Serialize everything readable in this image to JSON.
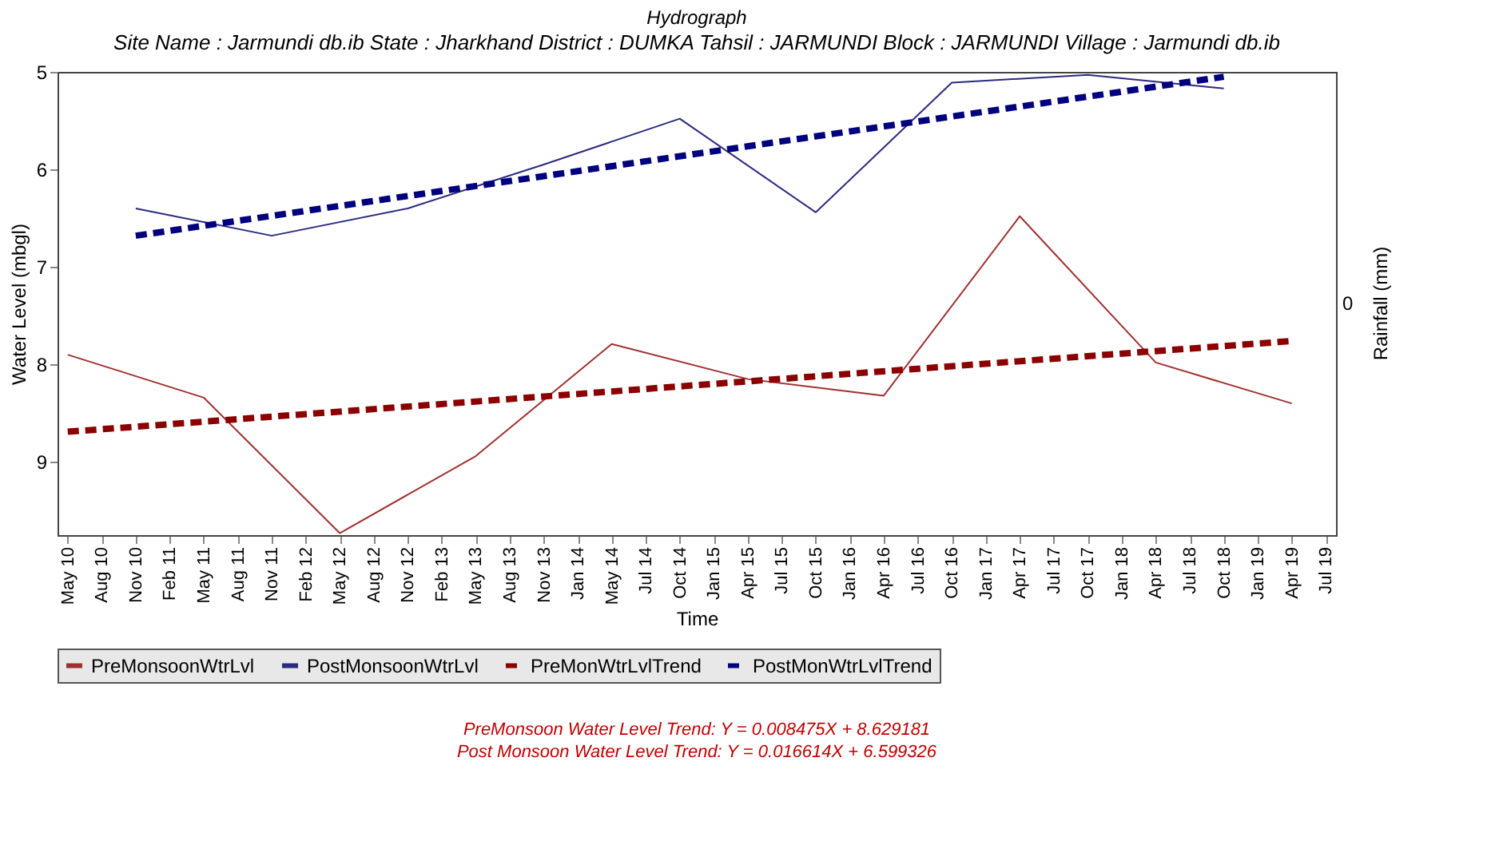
{
  "chart_data": {
    "type": "line",
    "title": "Hydrograph",
    "subtitle": "Site Name : Jarmundi db.ib  State : Jharkhand District : DUMKA  Tahsil : JARMUNDI  Block : JARMUNDI Village : Jarmundi db.ib",
    "xlabel": "Time",
    "ylabel": "Water Level (mbgl)",
    "y2label": "Rainfall (mm)",
    "categories": [
      "May 10",
      "Aug 10",
      "Nov 10",
      "Feb 11",
      "May 11",
      "Aug 11",
      "Nov 11",
      "Feb 12",
      "May 12",
      "Aug 12",
      "Nov 12",
      "Feb 13",
      "May 13",
      "Aug 13",
      "Nov 13",
      "Jan 14",
      "May 14",
      "Jul 14",
      "Oct 14",
      "Jan 15",
      "Apr 15",
      "Jul 15",
      "Oct 15",
      "Jan 16",
      "Apr 16",
      "Jul 16",
      "Oct 16",
      "Jan 17",
      "Apr 17",
      "Jul 17",
      "Oct 17",
      "Jan 18",
      "Apr 18",
      "Jul 18",
      "Oct 18",
      "Jan 19",
      "Apr 19",
      "Jul 19"
    ],
    "series": [
      {
        "name": "PreMonsoonWtrLvl",
        "color": "#a03030",
        "line_style": "solid",
        "x": [
          "May 10",
          "May 11",
          "May 12",
          "May 13",
          "May 14",
          "Apr 15",
          "Apr 16",
          "Apr 17",
          "Apr 18",
          "Apr 19"
        ],
        "values": [
          7.9,
          8.34,
          9.73,
          8.94,
          7.79,
          8.15,
          8.32,
          6.48,
          7.98,
          8.4
        ]
      },
      {
        "name": "PostMonsoonWtrLvl",
        "color": "#2a2a80",
        "line_style": "solid",
        "x": [
          "Nov 10",
          "Nov 11",
          "Nov 12",
          "Nov 13",
          "Oct 14",
          "Oct 15",
          "Oct 16",
          "Oct 17",
          "Oct 18"
        ],
        "values": [
          6.4,
          6.68,
          6.4,
          5.95,
          5.48,
          6.44,
          5.11,
          5.03,
          5.17
        ]
      },
      {
        "name": "PreMonWtrLvlTrend",
        "color": "#8b0000",
        "line_style": "dashed",
        "x": [
          "May 10",
          "Apr 19"
        ],
        "values": [
          8.69,
          7.76
        ]
      },
      {
        "name": "PostMonWtrLvlTrend",
        "color": "#00007f",
        "line_style": "dashed",
        "x": [
          "Nov 10",
          "Oct 18"
        ],
        "values": [
          6.68,
          5.05
        ]
      }
    ],
    "ylim": [
      9.75,
      5
    ],
    "yticks": [
      5,
      6,
      7,
      8,
      9
    ],
    "grid": false,
    "legend": "bottom",
    "marker": "none",
    "annotations": [
      "0",
      "PreMonsoon Water Level Trend: Y = 0.008475X + 8.629181",
      "Post Monsoon Water Level Trend: Y = 0.016614X + 6.599326"
    ]
  }
}
